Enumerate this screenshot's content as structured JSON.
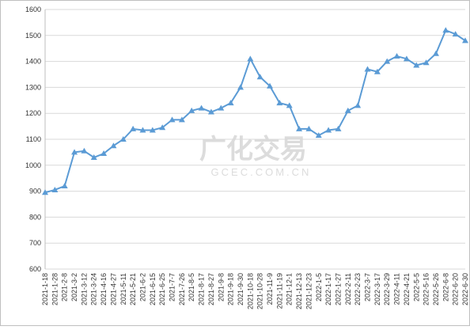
{
  "chart_data": {
    "type": "line",
    "watermark": "广化交易",
    "watermark_sub": "GCEC.COM.CN",
    "categories": [
      "2021-1-18",
      "2021-1-28",
      "2021-2-8",
      "2021-3-2",
      "2021-3-12",
      "2021-3-24",
      "2021-4-16",
      "2021-4-27",
      "2021-5-11",
      "2021-5-21",
      "2021-6-2",
      "2021-6-15",
      "2021-6-25",
      "2021-7-7",
      "2021-7-26",
      "2021-8-5",
      "2021-8-17",
      "2021-8-27",
      "2021-9-8",
      "2021-9-18",
      "2021-9-30",
      "2021-10-18",
      "2021-10-28",
      "2021-11-9",
      "2021-11-19",
      "2021-12-1",
      "2021-12-13",
      "2021-12-23",
      "2022-1-5",
      "2022-1-17",
      "2022-1-27",
      "2022-2-11",
      "2022-2-23",
      "2022-3-7",
      "2022-3-17",
      "2022-3-29",
      "2022-4-11",
      "2022-4-21",
      "2022-5-5",
      "2022-5-16",
      "2022-5-26",
      "2022-6-8",
      "2022-6-20",
      "2022-6-30"
    ],
    "values": [
      895,
      905,
      920,
      1050,
      1055,
      1030,
      1045,
      1075,
      1100,
      1140,
      1135,
      1135,
      1145,
      1175,
      1175,
      1210,
      1220,
      1205,
      1220,
      1240,
      1300,
      1410,
      1340,
      1305,
      1240,
      1230,
      1140,
      1140,
      1115,
      1135,
      1140,
      1210,
      1230,
      1370,
      1360,
      1400,
      1420,
      1410,
      1385,
      1395,
      1430,
      1520,
      1505,
      1480
    ],
    "color": "#5b9bd5",
    "ylim": [
      600,
      1600
    ],
    "yticks": [
      600,
      700,
      800,
      900,
      1000,
      1100,
      1200,
      1300,
      1400,
      1500,
      1600
    ],
    "grid": true
  }
}
